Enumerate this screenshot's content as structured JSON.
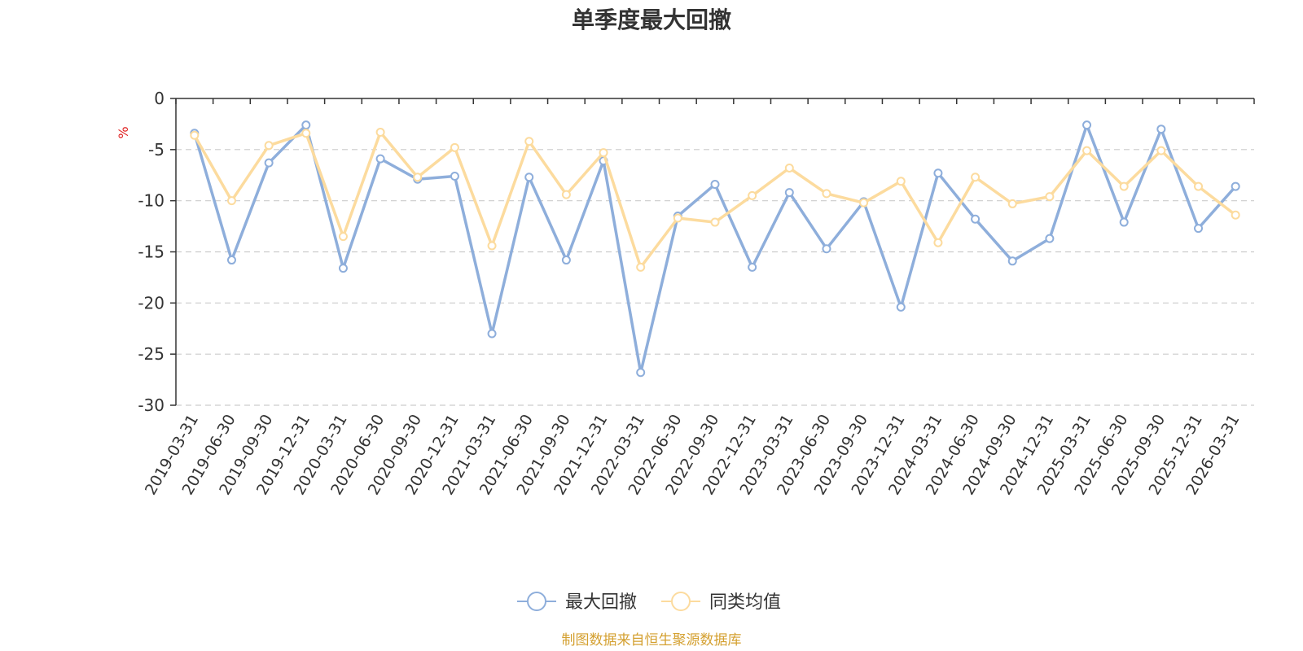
{
  "chart_data": {
    "type": "line",
    "title": "单季度最大回撤",
    "ylabel": "%",
    "xlabel": "",
    "ylim": [
      -30,
      0
    ],
    "yticks": [
      0,
      -5,
      -10,
      -15,
      -20,
      -25,
      -30
    ],
    "ytick_labels": [
      "0",
      "-5",
      "-10",
      "-15",
      "-20",
      "-25",
      "-30"
    ],
    "grid": true,
    "legend_position": "bottom-center",
    "categories": [
      "2019-03-31",
      "2019-06-30",
      "2019-09-30",
      "2019-12-31",
      "2020-03-31",
      "2020-06-30",
      "2020-09-30",
      "2020-12-31",
      "2021-03-31",
      "2021-06-30",
      "2021-09-30",
      "2021-12-31",
      "2022-03-31",
      "2022-06-30",
      "2022-09-30",
      "2022-12-31",
      "2023-03-31",
      "2023-06-30",
      "2023-09-30",
      "2023-12-31",
      "2024-03-31",
      "2024-06-30",
      "2024-09-30",
      "2024-12-31",
      "2025-03-31",
      "2025-06-30",
      "2025-09-30",
      "2025-12-31",
      "2026-03-31"
    ],
    "series": [
      {
        "name": "最大回撤",
        "color": "#8eaedb",
        "values": [
          -3.4,
          -15.8,
          -6.3,
          -2.6,
          -16.6,
          -5.9,
          -7.9,
          -7.6,
          -23.0,
          -7.7,
          -15.8,
          -6.1,
          -26.8,
          -11.5,
          -8.4,
          -16.5,
          -9.2,
          -14.7,
          -10.1,
          -20.4,
          -7.3,
          -11.8,
          -15.9,
          -13.7,
          -2.6,
          -12.1,
          -3.0,
          -12.7,
          -8.6
        ]
      },
      {
        "name": "同类均值",
        "color": "#fcdb9e",
        "values": [
          -3.6,
          -10.0,
          -4.6,
          -3.4,
          -13.5,
          -3.3,
          -7.7,
          -4.8,
          -14.4,
          -4.2,
          -9.4,
          -5.3,
          -16.5,
          -11.7,
          -12.1,
          -9.5,
          -6.8,
          -9.3,
          -10.2,
          -8.1,
          -14.1,
          -7.7,
          -10.3,
          -9.6,
          -5.1,
          -8.6,
          -5.1,
          -8.6,
          -11.4
        ]
      }
    ]
  },
  "footer": {
    "source": "制图数据来自恒生聚源数据库"
  },
  "colors": {
    "axis": "#333333",
    "grid": "#cccccc",
    "unit": "#e02020",
    "source": "#d4a030",
    "text": "#333333"
  }
}
